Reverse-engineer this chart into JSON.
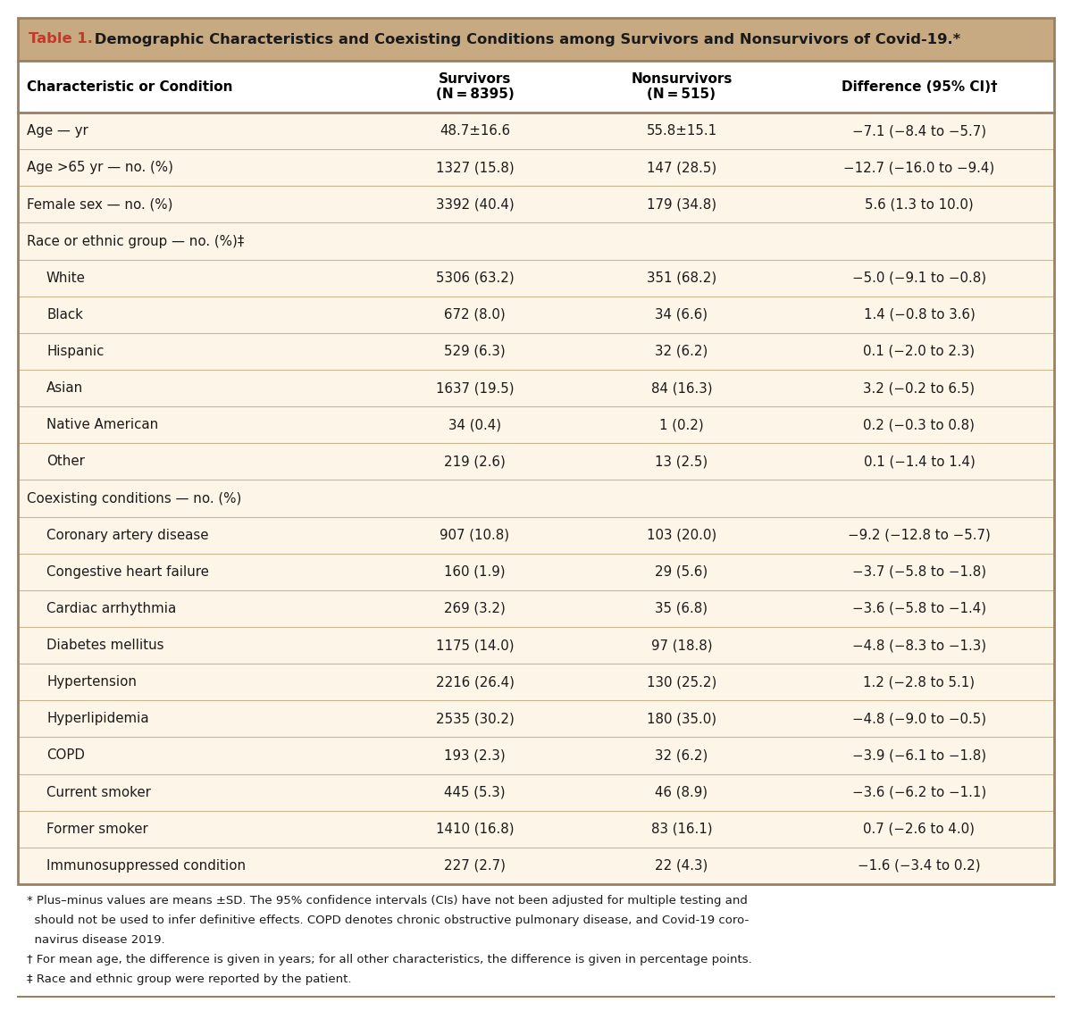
{
  "title_prefix": "Table 1.",
  "title_rest": " Demographic Characteristics and Coexisting Conditions among Survivors and Nonsurvivors of Covid-19.*",
  "col_headers": [
    "Characteristic or Condition",
    "Survivors\n(N = 8395)",
    "Nonsurvivors\n(N = 515)",
    "Difference (95% CI)†"
  ],
  "rows": [
    {
      "label": "Age — yr",
      "indent": 0,
      "survivors": "48.7±16.6",
      "nonsurvivors": "55.8±15.1",
      "difference": "−7.1 (−8.4 to −5.7)",
      "section_header": false
    },
    {
      "label": "Age >65 yr — no. (%)",
      "indent": 0,
      "survivors": "1327 (15.8)",
      "nonsurvivors": "147 (28.5)",
      "difference": "−12.7 (−16.0 to −9.4)",
      "section_header": false
    },
    {
      "label": "Female sex — no. (%)",
      "indent": 0,
      "survivors": "3392 (40.4)",
      "nonsurvivors": "179 (34.8)",
      "difference": "5.6 (1.3 to 10.0)",
      "section_header": false
    },
    {
      "label": "Race or ethnic group — no. (%)‡",
      "indent": 0,
      "survivors": "",
      "nonsurvivors": "",
      "difference": "",
      "section_header": true
    },
    {
      "label": "White",
      "indent": 1,
      "survivors": "5306 (63.2)",
      "nonsurvivors": "351 (68.2)",
      "difference": "−5.0 (−9.1 to −0.8)",
      "section_header": false
    },
    {
      "label": "Black",
      "indent": 1,
      "survivors": "672 (8.0)",
      "nonsurvivors": "34 (6.6)",
      "difference": "1.4 (−0.8 to 3.6)",
      "section_header": false
    },
    {
      "label": "Hispanic",
      "indent": 1,
      "survivors": "529 (6.3)",
      "nonsurvivors": "32 (6.2)",
      "difference": "0.1 (−2.0 to 2.3)",
      "section_header": false
    },
    {
      "label": "Asian",
      "indent": 1,
      "survivors": "1637 (19.5)",
      "nonsurvivors": "84 (16.3)",
      "difference": "3.2 (−0.2 to 6.5)",
      "section_header": false
    },
    {
      "label": "Native American",
      "indent": 1,
      "survivors": "34 (0.4)",
      "nonsurvivors": "1 (0.2)",
      "difference": "0.2 (−0.3 to 0.8)",
      "section_header": false
    },
    {
      "label": "Other",
      "indent": 1,
      "survivors": "219 (2.6)",
      "nonsurvivors": "13 (2.5)",
      "difference": "0.1 (−1.4 to 1.4)",
      "section_header": false
    },
    {
      "label": "Coexisting conditions — no. (%)",
      "indent": 0,
      "survivors": "",
      "nonsurvivors": "",
      "difference": "",
      "section_header": true
    },
    {
      "label": "Coronary artery disease",
      "indent": 1,
      "survivors": "907 (10.8)",
      "nonsurvivors": "103 (20.0)",
      "difference": "−9.2 (−12.8 to −5.7)",
      "section_header": false
    },
    {
      "label": "Congestive heart failure",
      "indent": 1,
      "survivors": "160 (1.9)",
      "nonsurvivors": "29 (5.6)",
      "difference": "−3.7 (−5.8 to −1.8)",
      "section_header": false
    },
    {
      "label": "Cardiac arrhythmia",
      "indent": 1,
      "survivors": "269 (3.2)",
      "nonsurvivors": "35 (6.8)",
      "difference": "−3.6 (−5.8 to −1.4)",
      "section_header": false
    },
    {
      "label": "Diabetes mellitus",
      "indent": 1,
      "survivors": "1175 (14.0)",
      "nonsurvivors": "97 (18.8)",
      "difference": "−4.8 (−8.3 to −1.3)",
      "section_header": false
    },
    {
      "label": "Hypertension",
      "indent": 1,
      "survivors": "2216 (26.4)",
      "nonsurvivors": "130 (25.2)",
      "difference": "1.2 (−2.8 to 5.1)",
      "section_header": false
    },
    {
      "label": "Hyperlipidemia",
      "indent": 1,
      "survivors": "2535 (30.2)",
      "nonsurvivors": "180 (35.0)",
      "difference": "−4.8 (−9.0 to −0.5)",
      "section_header": false
    },
    {
      "label": "COPD",
      "indent": 1,
      "survivors": "193 (2.3)",
      "nonsurvivors": "32 (6.2)",
      "difference": "−3.9 (−6.1 to −1.8)",
      "section_header": false
    },
    {
      "label": "Current smoker",
      "indent": 1,
      "survivors": "445 (5.3)",
      "nonsurvivors": "46 (8.9)",
      "difference": "−3.6 (−6.2 to −1.1)",
      "section_header": false
    },
    {
      "label": "Former smoker",
      "indent": 1,
      "survivors": "1410 (16.8)",
      "nonsurvivors": "83 (16.1)",
      "difference": "0.7 (−2.6 to 4.0)",
      "section_header": false
    },
    {
      "label": "Immunosuppressed condition",
      "indent": 1,
      "survivors": "227 (2.7)",
      "nonsurvivors": "22 (4.3)",
      "difference": "−1.6 (−3.4 to 0.2)",
      "section_header": false
    }
  ],
  "footnotes": [
    [
      "*",
      " Plus–minus values are means ±SD. The 95% confidence intervals (CIs) have not been adjusted for multiple testing and"
    ],
    [
      "",
      "  should not be used to infer definitive effects. COPD denotes chronic obstructive pulmonary disease, and Covid-19 coro-"
    ],
    [
      "",
      "  navirus disease 2019."
    ],
    [
      "†",
      " For mean age, the difference is given in years; for all other characteristics, the difference is given in percentage points."
    ],
    [
      "‡",
      " Race and ethnic group were reported by the patient."
    ]
  ],
  "bg_color_title": "#c8aa82",
  "bg_color_table": "#fdf5e8",
  "bg_color_white_header": "#ffffff",
  "border_color": "#9a8060",
  "divider_color": "#c8b890",
  "title_color_prefix": "#c0392b",
  "title_color_rest": "#1a1a1a",
  "text_color": "#1a1a1a",
  "footnote_color": "#1a1a1a",
  "font_size_title": 11.8,
  "font_size_header": 11.0,
  "font_size_body": 10.8,
  "font_size_footnote": 9.5
}
